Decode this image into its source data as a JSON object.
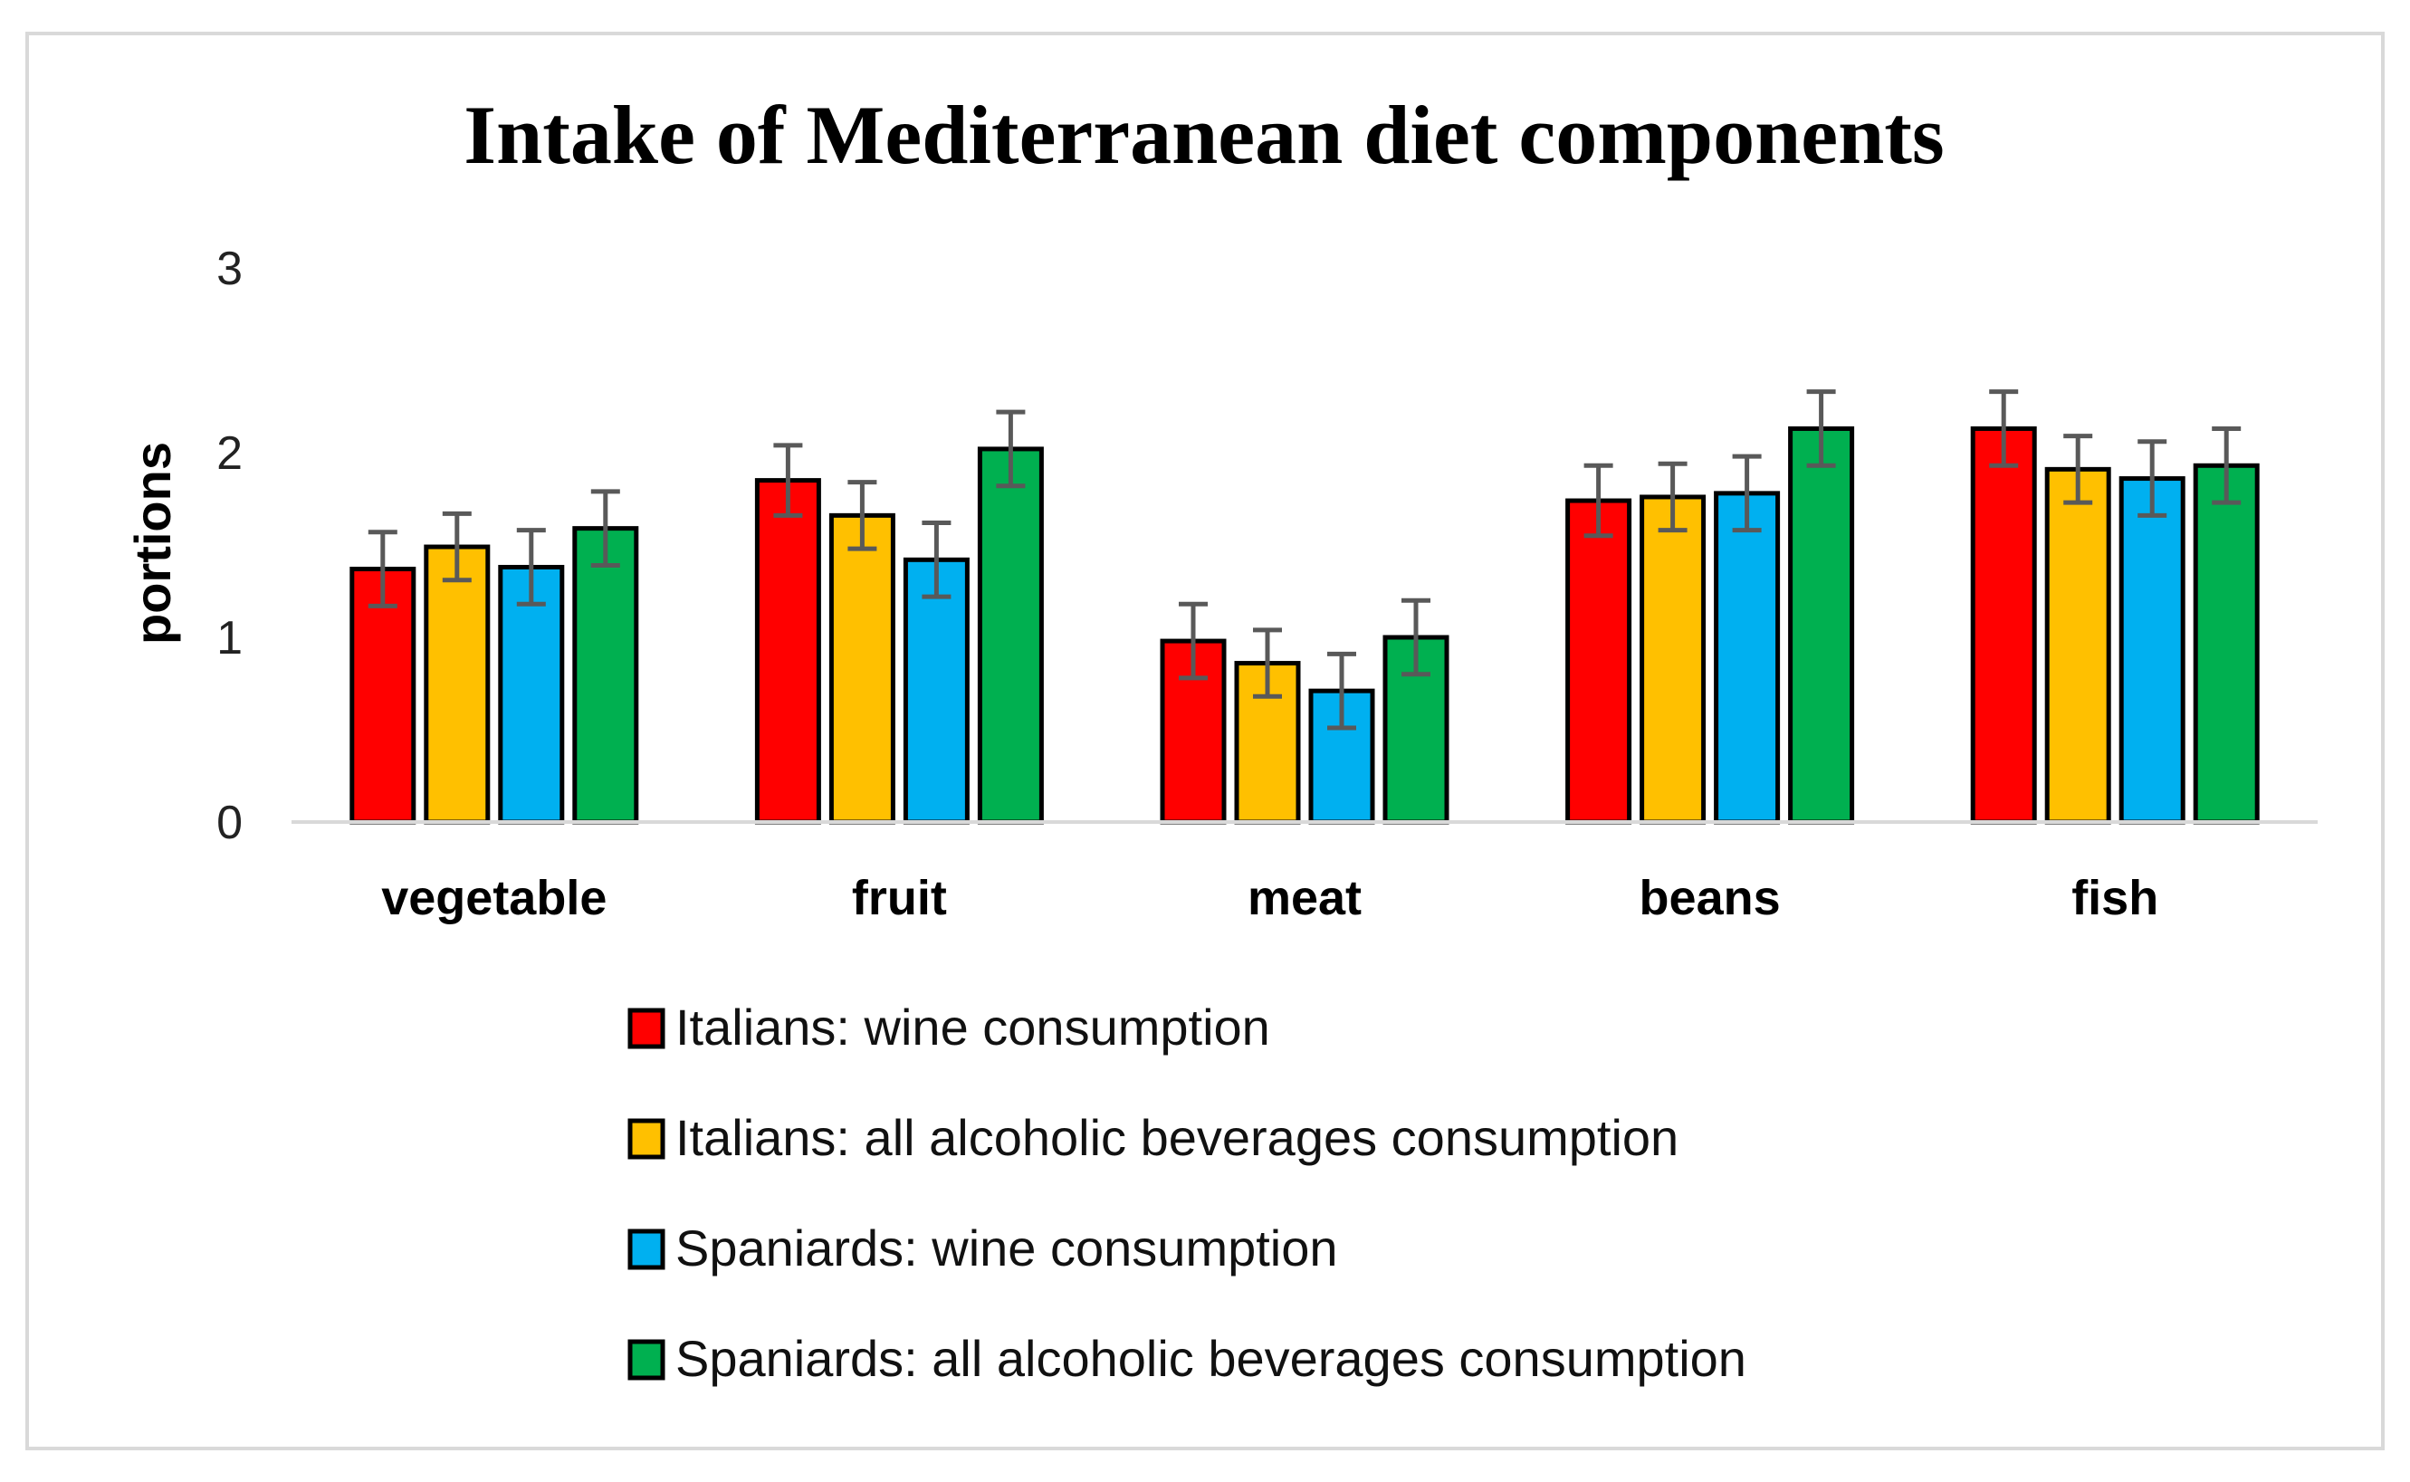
{
  "chart_data": {
    "type": "bar",
    "title": "Intake of Mediterranean diet components",
    "xlabel": "",
    "ylabel": "portions",
    "ylim": [
      0,
      3
    ],
    "yticks": [
      0,
      1,
      2,
      3
    ],
    "grid": false,
    "legend_position": "bottom",
    "categories": [
      "vegetable",
      "fruit",
      "meat",
      "beans",
      "fish"
    ],
    "series": [
      {
        "name": "Italians: wine consumption",
        "color": "#ff0000",
        "values": [
          1.37,
          1.85,
          0.98,
          1.74,
          2.13
        ],
        "errors": [
          0.2,
          0.19,
          0.2,
          0.19,
          0.2
        ]
      },
      {
        "name": "Italians: all alcoholic beverages consumption",
        "color": "#ffc000",
        "values": [
          1.49,
          1.66,
          0.86,
          1.76,
          1.91
        ],
        "errors": [
          0.18,
          0.18,
          0.18,
          0.18,
          0.18
        ]
      },
      {
        "name": "Spaniards: wine consumption",
        "color": "#00b0f0",
        "values": [
          1.38,
          1.42,
          0.71,
          1.78,
          1.86
        ],
        "errors": [
          0.2,
          0.2,
          0.2,
          0.2,
          0.2
        ]
      },
      {
        "name": "Spaniards: all alcoholic beverages consumption",
        "color": "#00b050",
        "values": [
          1.59,
          2.02,
          1.0,
          2.13,
          1.93
        ],
        "errors": [
          0.2,
          0.2,
          0.2,
          0.2,
          0.2
        ]
      }
    ]
  }
}
